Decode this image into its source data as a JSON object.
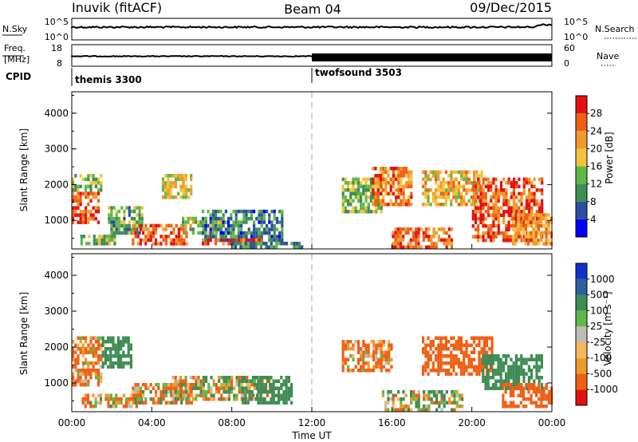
{
  "header": {
    "station": "Inuvik (fitACF)",
    "beam": "Beam 04",
    "date": "09/Dec/2015"
  },
  "strips": {
    "nsky": {
      "label": "N.Sky",
      "ticks": [
        "10^5",
        "10^0"
      ],
      "right_label": "N.Search",
      "right_ticks": [
        "10^5",
        "10^0"
      ]
    },
    "freq": {
      "label_lines": [
        "Freq.",
        "[MHz]"
      ],
      "ticks": [
        "18",
        "8"
      ],
      "right_label": "Nave",
      "right_ticks": [
        "60",
        "0"
      ]
    },
    "cpid": {
      "label": "CPID",
      "modes": [
        {
          "name": "themis 3300",
          "start_hour": 0
        },
        {
          "name": "twofsound 3503",
          "start_hour": 12
        }
      ]
    }
  },
  "colors": {
    "power": [
      "#0000ff",
      "#2c4ea0",
      "#3f8c55",
      "#5fb947",
      "#f4c33b",
      "#f09a2a",
      "#f05f14",
      "#e51010"
    ],
    "velocity": [
      "#e51010",
      "#f05f14",
      "#f09a2a",
      "#f6b75a",
      "#bdbdb6",
      "#5fb947",
      "#3f8c55",
      "#2c5fa0",
      "#1030d0"
    ]
  },
  "chart_data": [
    {
      "type": "heatmap",
      "panel": "power",
      "ylabel": "Slant Range [km]",
      "xlim": [
        0,
        24
      ],
      "ylim": [
        200,
        4600
      ],
      "yticks": [
        1000,
        2000,
        3000,
        4000
      ],
      "colorbar_label": "Power [dB]",
      "colorbar_ticks": [
        4,
        8,
        12,
        16,
        20,
        24,
        28
      ],
      "colorbar_range": [
        0,
        32
      ],
      "regions": [
        {
          "t0": 0.0,
          "t1": 1.3,
          "r0": 900,
          "r1": 1800,
          "level": 26
        },
        {
          "t0": 0.0,
          "t1": 1.5,
          "r0": 1800,
          "r1": 2300,
          "level": 14
        },
        {
          "t0": 0.3,
          "t1": 2.2,
          "r0": 300,
          "r1": 600,
          "level": 14
        },
        {
          "t0": 1.8,
          "t1": 3.5,
          "r0": 600,
          "r1": 1400,
          "level": 12
        },
        {
          "t0": 3.0,
          "t1": 5.8,
          "r0": 300,
          "r1": 900,
          "level": 27
        },
        {
          "t0": 4.5,
          "t1": 6.0,
          "r0": 1600,
          "r1": 2300,
          "level": 18
        },
        {
          "t0": 5.5,
          "t1": 7.5,
          "r0": 600,
          "r1": 1100,
          "level": 16
        },
        {
          "t0": 6.5,
          "t1": 10.5,
          "r0": 400,
          "r1": 1300,
          "level": 9
        },
        {
          "t0": 6.5,
          "t1": 9.5,
          "r0": 300,
          "r1": 500,
          "level": 26
        },
        {
          "t0": 8.0,
          "t1": 11.5,
          "r0": 250,
          "r1": 400,
          "level": 10
        },
        {
          "t0": 13.5,
          "t1": 15.5,
          "r0": 1200,
          "r1": 2200,
          "level": 14
        },
        {
          "t0": 15.0,
          "t1": 17.0,
          "r0": 1400,
          "r1": 2500,
          "level": 24
        },
        {
          "t0": 16.0,
          "t1": 19.0,
          "r0": 250,
          "r1": 800,
          "level": 26
        },
        {
          "t0": 17.5,
          "t1": 20.5,
          "r0": 1400,
          "r1": 2400,
          "level": 20
        },
        {
          "t0": 20.0,
          "t1": 23.5,
          "r0": 400,
          "r1": 2200,
          "level": 27
        },
        {
          "t0": 22.0,
          "t1": 24.0,
          "r0": 300,
          "r1": 1200,
          "level": 22
        }
      ]
    },
    {
      "type": "heatmap",
      "panel": "velocity",
      "xlabel": "Time UT",
      "ylabel": "Slant Range [km]",
      "xlim": [
        0,
        24
      ],
      "ylim": [
        200,
        4600
      ],
      "yticks": [
        1000,
        2000,
        3000,
        4000
      ],
      "xticks": [
        "00:00",
        "04:00",
        "08:00",
        "12:00",
        "16:00",
        "20:00",
        "00:00"
      ],
      "colorbar_label": "Velocity [m s⁻¹]",
      "colorbar_ticks": [
        "1000",
        "500",
        "100",
        "25",
        "-25",
        "-100",
        "-500",
        "-1000"
      ],
      "regions": [
        {
          "t0": 0.0,
          "t1": 1.5,
          "r0": 900,
          "r1": 2300,
          "level": -150
        },
        {
          "t0": 1.5,
          "t1": 3.0,
          "r0": 1400,
          "r1": 2300,
          "level": 300
        },
        {
          "t0": 0.5,
          "t1": 3.5,
          "r0": 300,
          "r1": 700,
          "level": -60
        },
        {
          "t0": 3.0,
          "t1": 6.0,
          "r0": 400,
          "r1": 1000,
          "level": -60
        },
        {
          "t0": 5.0,
          "t1": 10.0,
          "r0": 500,
          "r1": 1200,
          "level": 0
        },
        {
          "t0": 8.5,
          "t1": 11.0,
          "r0": 400,
          "r1": 1200,
          "level": 300
        },
        {
          "t0": 13.5,
          "t1": 16.0,
          "r0": 1300,
          "r1": 2200,
          "level": -150
        },
        {
          "t0": 15.5,
          "t1": 19.5,
          "r0": 250,
          "r1": 800,
          "level": 60
        },
        {
          "t0": 17.5,
          "t1": 21.0,
          "r0": 1200,
          "r1": 2300,
          "level": -300
        },
        {
          "t0": 20.5,
          "t1": 23.5,
          "r0": 800,
          "r1": 1800,
          "level": 300
        },
        {
          "t0": 21.5,
          "t1": 24.0,
          "r0": 300,
          "r1": 1000,
          "level": -300
        }
      ]
    }
  ]
}
